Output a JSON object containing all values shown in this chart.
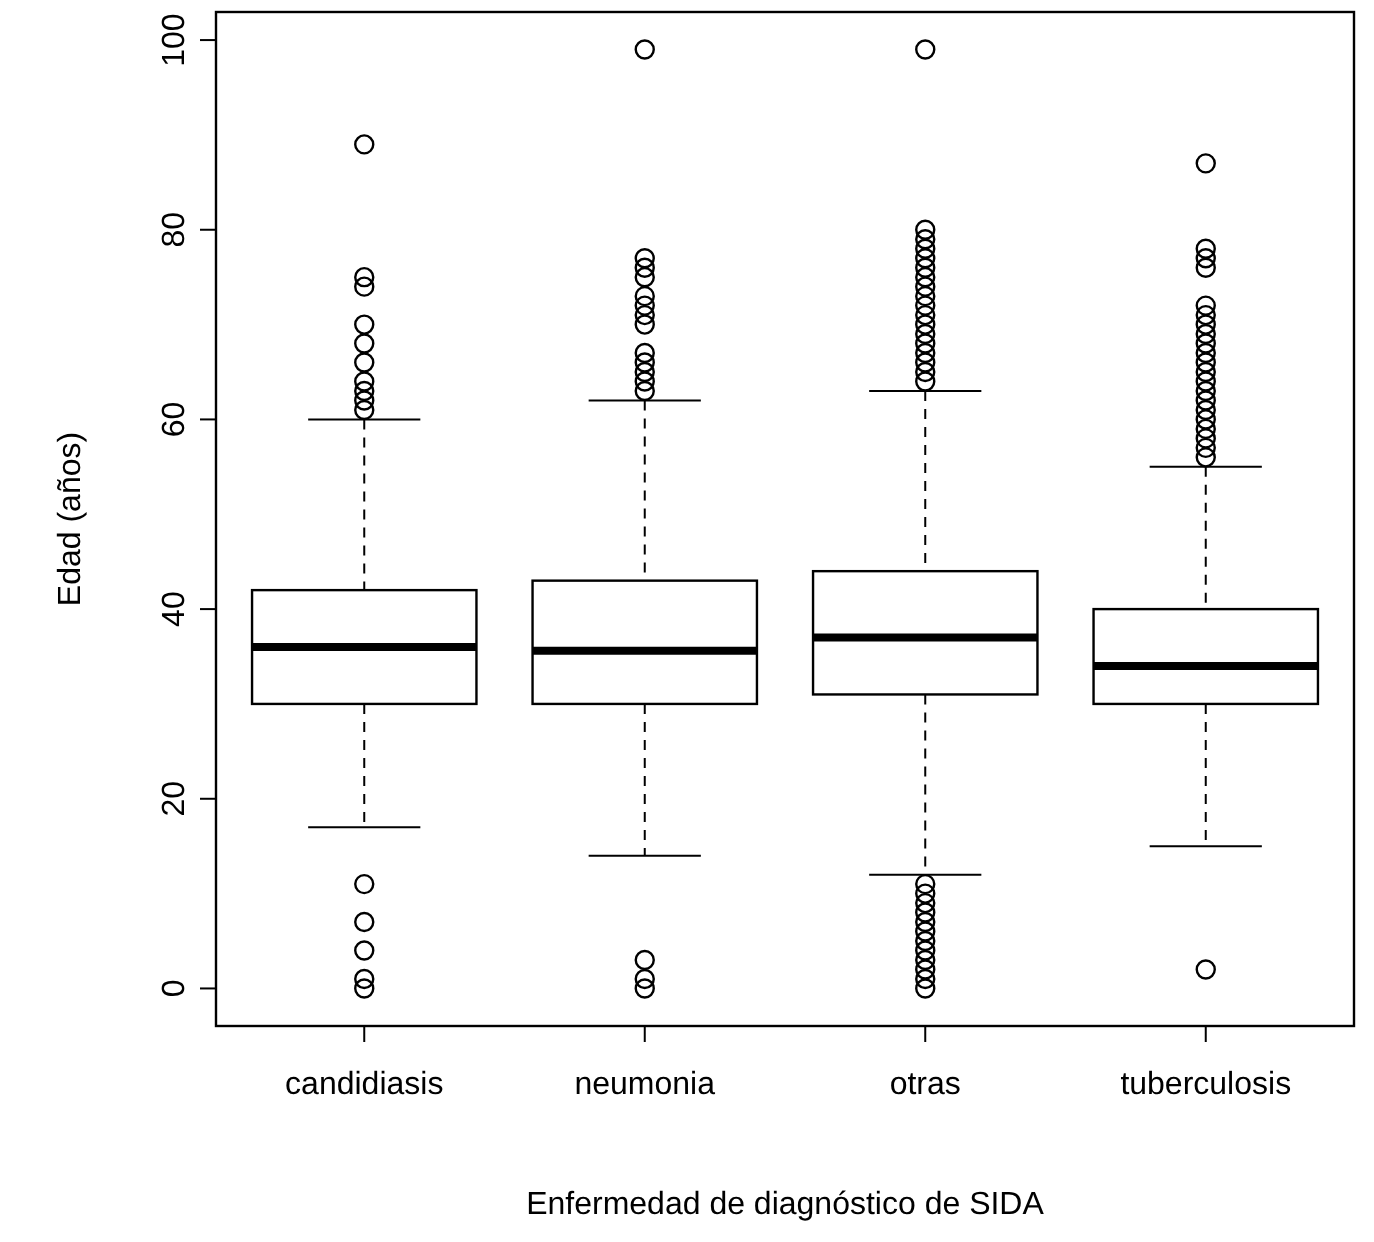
{
  "chart_data": {
    "type": "box",
    "xlabel": "Enfermedad de diagnóstico de SIDA",
    "ylabel": "Edad (años)",
    "categories": [
      "candidiasis",
      "neumonia",
      "otras",
      "tuberculosis"
    ],
    "ylim": [
      -3.96,
      102.96
    ],
    "yticks": [
      0,
      20,
      40,
      60,
      80,
      100
    ],
    "grid": false,
    "marker": "circle",
    "boxes": [
      {
        "low": 17,
        "q1": 30,
        "median": 36,
        "q3": 42,
        "high": 60,
        "outliers": [
          89,
          75,
          74,
          70,
          68,
          66,
          64,
          63,
          62,
          61,
          11,
          7,
          4,
          1,
          0
        ]
      },
      {
        "low": 14,
        "q1": 30,
        "median": 35.6,
        "q3": 43,
        "high": 62,
        "outliers": [
          99,
          77,
          76,
          75,
          73,
          72,
          71,
          70,
          67,
          66,
          65,
          64,
          63,
          3,
          1,
          0
        ]
      },
      {
        "low": 12,
        "q1": 31,
        "median": 37,
        "q3": 44,
        "high": 63,
        "outliers": [
          99,
          80,
          79,
          78,
          77,
          76,
          75,
          74,
          73,
          72,
          71,
          70,
          69,
          68,
          67,
          66,
          65,
          64,
          11,
          10,
          9,
          8,
          7,
          6,
          5,
          4,
          3,
          2,
          1,
          0
        ]
      },
      {
        "low": 15,
        "q1": 30,
        "median": 34,
        "q3": 40,
        "high": 55,
        "outliers": [
          87,
          78,
          77,
          76,
          72,
          71,
          70,
          69,
          68,
          67,
          66,
          65,
          64,
          63,
          62,
          61,
          60,
          59,
          58,
          57,
          56,
          2
        ]
      }
    ]
  }
}
